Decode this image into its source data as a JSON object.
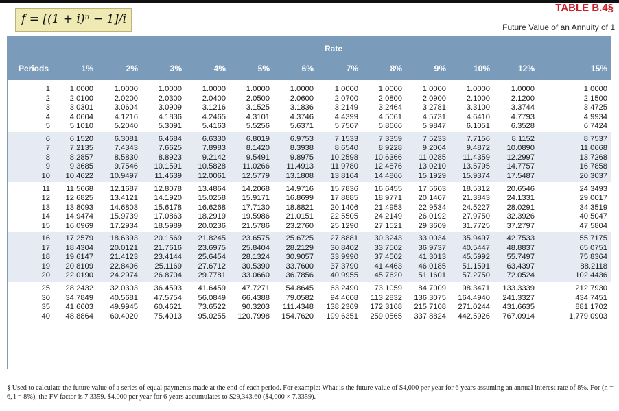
{
  "formula": "f = [(1 + i)ⁿ − 1]/i",
  "table_title": "TABLE B.4§",
  "table_subtitle": "Future Value of an Annuity of 1",
  "rate_label": "Rate",
  "periods_header": "Periods",
  "rates": [
    "1%",
    "2%",
    "3%",
    "4%",
    "5%",
    "6%",
    "7%",
    "8%",
    "9%",
    "10%",
    "12%",
    "15%"
  ],
  "rows": [
    {
      "period": "1",
      "values": [
        "1.0000",
        "1.0000",
        "1.0000",
        "1.0000",
        "1.0000",
        "1.0000",
        "1.0000",
        "1.0000",
        "1.0000",
        "1.0000",
        "1.0000",
        "1.0000"
      ]
    },
    {
      "period": "2",
      "values": [
        "2.0100",
        "2.0200",
        "2.0300",
        "2.0400",
        "2.0500",
        "2.0600",
        "2.0700",
        "2.0800",
        "2.0900",
        "2.1000",
        "2.1200",
        "2.1500"
      ]
    },
    {
      "period": "3",
      "values": [
        "3.0301",
        "3.0604",
        "3.0909",
        "3.1216",
        "3.1525",
        "3.1836",
        "3.2149",
        "3.2464",
        "3.2781",
        "3.3100",
        "3.3744",
        "3.4725"
      ]
    },
    {
      "period": "4",
      "values": [
        "4.0604",
        "4.1216",
        "4.1836",
        "4.2465",
        "4.3101",
        "4.3746",
        "4.4399",
        "4.5061",
        "4.5731",
        "4.6410",
        "4.7793",
        "4.9934"
      ]
    },
    {
      "period": "5",
      "values": [
        "5.1010",
        "5.2040",
        "5.3091",
        "5.4163",
        "5.5256",
        "5.6371",
        "5.7507",
        "5.8666",
        "5.9847",
        "6.1051",
        "6.3528",
        "6.7424"
      ]
    },
    {
      "period": "6",
      "values": [
        "6.1520",
        "6.3081",
        "6.4684",
        "6.6330",
        "6.8019",
        "6.9753",
        "7.1533",
        "7.3359",
        "7.5233",
        "7.7156",
        "8.1152",
        "8.7537"
      ]
    },
    {
      "period": "7",
      "values": [
        "7.2135",
        "7.4343",
        "7.6625",
        "7.8983",
        "8.1420",
        "8.3938",
        "8.6540",
        "8.9228",
        "9.2004",
        "9.4872",
        "10.0890",
        "11.0668"
      ]
    },
    {
      "period": "8",
      "values": [
        "8.2857",
        "8.5830",
        "8.8923",
        "9.2142",
        "9.5491",
        "9.8975",
        "10.2598",
        "10.6366",
        "11.0285",
        "11.4359",
        "12.2997",
        "13.7268"
      ]
    },
    {
      "period": "9",
      "values": [
        "9.3685",
        "9.7546",
        "10.1591",
        "10.5828",
        "11.0266",
        "11.4913",
        "11.9780",
        "12.4876",
        "13.0210",
        "13.5795",
        "14.7757",
        "16.7858"
      ]
    },
    {
      "period": "10",
      "values": [
        "10.4622",
        "10.9497",
        "11.4639",
        "12.0061",
        "12.5779",
        "13.1808",
        "13.8164",
        "14.4866",
        "15.1929",
        "15.9374",
        "17.5487",
        "20.3037"
      ]
    },
    {
      "period": "11",
      "values": [
        "11.5668",
        "12.1687",
        "12.8078",
        "13.4864",
        "14.2068",
        "14.9716",
        "15.7836",
        "16.6455",
        "17.5603",
        "18.5312",
        "20.6546",
        "24.3493"
      ]
    },
    {
      "period": "12",
      "values": [
        "12.6825",
        "13.4121",
        "14.1920",
        "15.0258",
        "15.9171",
        "16.8699",
        "17.8885",
        "18.9771",
        "20.1407",
        "21.3843",
        "24.1331",
        "29.0017"
      ]
    },
    {
      "period": "13",
      "values": [
        "13.8093",
        "14.6803",
        "15.6178",
        "16.6268",
        "17.7130",
        "18.8821",
        "20.1406",
        "21.4953",
        "22.9534",
        "24.5227",
        "28.0291",
        "34.3519"
      ]
    },
    {
      "period": "14",
      "values": [
        "14.9474",
        "15.9739",
        "17.0863",
        "18.2919",
        "19.5986",
        "21.0151",
        "22.5505",
        "24.2149",
        "26.0192",
        "27.9750",
        "32.3926",
        "40.5047"
      ]
    },
    {
      "period": "15",
      "values": [
        "16.0969",
        "17.2934",
        "18.5989",
        "20.0236",
        "21.5786",
        "23.2760",
        "25.1290",
        "27.1521",
        "29.3609",
        "31.7725",
        "37.2797",
        "47.5804"
      ]
    },
    {
      "period": "16",
      "values": [
        "17.2579",
        "18.6393",
        "20.1569",
        "21.8245",
        "23.6575",
        "25.6725",
        "27.8881",
        "30.3243",
        "33.0034",
        "35.9497",
        "42.7533",
        "55.7175"
      ]
    },
    {
      "period": "17",
      "values": [
        "18.4304",
        "20.0121",
        "21.7616",
        "23.6975",
        "25.8404",
        "28.2129",
        "30.8402",
        "33.7502",
        "36.9737",
        "40.5447",
        "48.8837",
        "65.0751"
      ]
    },
    {
      "period": "18",
      "values": [
        "19.6147",
        "21.4123",
        "23.4144",
        "25.6454",
        "28.1324",
        "30.9057",
        "33.9990",
        "37.4502",
        "41.3013",
        "45.5992",
        "55.7497",
        "75.8364"
      ]
    },
    {
      "period": "19",
      "values": [
        "20.8109",
        "22.8406",
        "25.1169",
        "27.6712",
        "30.5390",
        "33.7600",
        "37.3790",
        "41.4463",
        "46.0185",
        "51.1591",
        "63.4397",
        "88.2118"
      ]
    },
    {
      "period": "20",
      "values": [
        "22.0190",
        "24.2974",
        "26.8704",
        "29.7781",
        "33.0660",
        "36.7856",
        "40.9955",
        "45.7620",
        "51.1601",
        "57.2750",
        "72.0524",
        "102.4436"
      ]
    },
    {
      "period": "25",
      "values": [
        "28.2432",
        "32.0303",
        "36.4593",
        "41.6459",
        "47.7271",
        "54.8645",
        "63.2490",
        "73.1059",
        "84.7009",
        "98.3471",
        "133.3339",
        "212.7930"
      ]
    },
    {
      "period": "30",
      "values": [
        "34.7849",
        "40.5681",
        "47.5754",
        "56.0849",
        "66.4388",
        "79.0582",
        "94.4608",
        "113.2832",
        "136.3075",
        "164.4940",
        "241.3327",
        "434.7451"
      ]
    },
    {
      "period": "35",
      "values": [
        "41.6603",
        "49.9945",
        "60.4621",
        "73.6522",
        "90.3203",
        "111.4348",
        "138.2369",
        "172.3168",
        "215.7108",
        "271.0244",
        "431.6635",
        "881.1702"
      ]
    },
    {
      "period": "40",
      "values": [
        "48.8864",
        "60.4020",
        "75.4013",
        "95.0255",
        "120.7998",
        "154.7620",
        "199.6351",
        "259.0565",
        "337.8824",
        "442.5926",
        "767.0914",
        "1,779.0903"
      ]
    }
  ],
  "footnote": "§ Used to calculate the future value of a series of equal payments made at the end of each period. For example: What is the future value of $4,000 per year for 6 years assuming an annual interest rate of 8%. For (n = 6, i = 8%), the FV factor is 7.3359. $4,000 per year for 6 years accumulates to $29,343.60 ($4,000 × 7.3359).",
  "colors": {
    "header_bg": "#7a9bba",
    "band_tint": "#e5eaf3",
    "title_red": "#c8202b",
    "formula_bg": "#efe9b4"
  }
}
